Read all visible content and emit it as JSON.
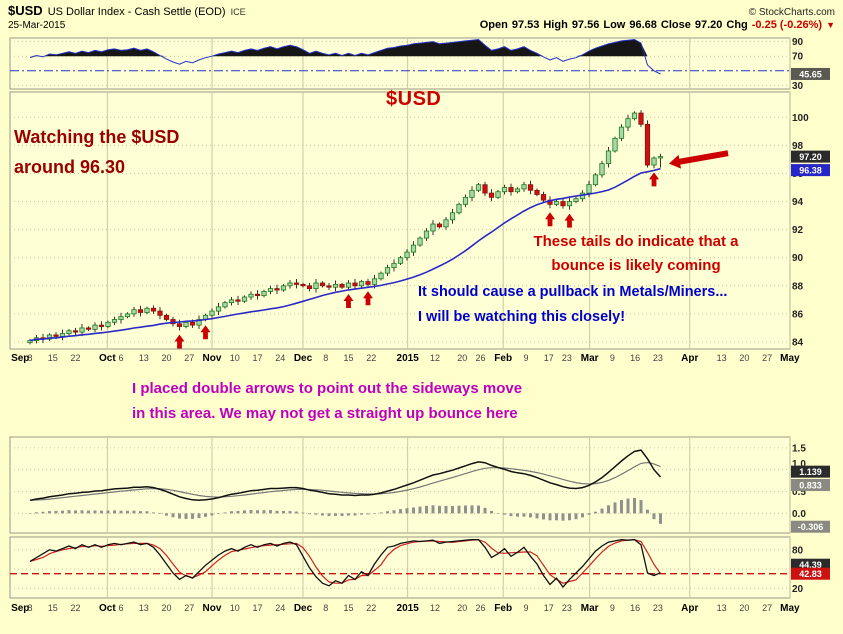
{
  "header": {
    "symbol": "$USD",
    "title": "US Dollar Index - Cash Settle (EOD)",
    "exchange": "ICE",
    "credit": "© StockCharts.com",
    "date": "25-Mar-2015",
    "quote": {
      "open_label": "Open",
      "open": "97.53",
      "high_label": "High",
      "high": "97.56",
      "low_label": "Low",
      "low": "96.68",
      "close_label": "Close",
      "close": "97.20",
      "chg_label": "Chg",
      "chg": "-0.25 (-0.26%)",
      "chg_dir": "▼"
    }
  },
  "annotations": {
    "usd_label": "$USD",
    "watching": "Watching the $USD\naround 96.30",
    "tails": "These tails do indicate that a\nbounce is likely coming",
    "pullback": "It should cause a pullback in Metals/Miners...\nI will be watching this closely!",
    "double_arrows": "I placed double arrows to point out the sideways move\nin this area.  We may not get a straight up bounce here"
  },
  "colors": {
    "background": "#FFFFCC",
    "panel": "#FFFFD6",
    "grid": "#C9C9A0",
    "candle_up": "#1D7A1D",
    "candle_up_fill": "#A8D8A8",
    "candle_down": "#CC1111",
    "candle_down_edge": "#881111",
    "ma": "#2929C8",
    "rsi_line": "#2233CC",
    "annotation_red": "#CC0000",
    "annotation_darkred": "#990000",
    "annotation_blue": "#0000CC",
    "annotation_purple": "#C000C0",
    "badge_black": "#2B2B2B",
    "badge_dark": "#5A5A52",
    "badge_gray": "#8A8A82",
    "badge_blue": "#2525C8",
    "badge_red": "#CC1111",
    "stoch_d": "#CC2222",
    "macd_line": "#111111",
    "macd_signal": "#777777",
    "histogram": "#909090"
  },
  "month_grid_i": [
    11.9,
    28,
    42,
    58.1,
    72.8,
    86.1,
    101.5,
    116.9
  ],
  "xticks": [
    {
      "t": "Sep",
      "i": -1.5,
      "b": 1
    },
    {
      "t": "8",
      "i": 0
    },
    {
      "t": "15",
      "i": 3.5
    },
    {
      "t": "22",
      "i": 7
    },
    {
      "t": "Oct",
      "i": 11.9,
      "b": 1
    },
    {
      "t": "6",
      "i": 14
    },
    {
      "t": "13",
      "i": 17.5
    },
    {
      "t": "20",
      "i": 21
    },
    {
      "t": "27",
      "i": 24.5
    },
    {
      "t": "Nov",
      "i": 28,
      "b": 1
    },
    {
      "t": "10",
      "i": 31.5
    },
    {
      "t": "17",
      "i": 35
    },
    {
      "t": "24",
      "i": 38.5
    },
    {
      "t": "Dec",
      "i": 42,
      "b": 1
    },
    {
      "t": "8",
      "i": 45.5
    },
    {
      "t": "15",
      "i": 49
    },
    {
      "t": "22",
      "i": 52.5
    },
    {
      "t": "2015",
      "i": 58.1,
      "b": 1
    },
    {
      "t": "12",
      "i": 62.3
    },
    {
      "t": "20",
      "i": 66.5
    },
    {
      "t": "26",
      "i": 69.3
    },
    {
      "t": "Feb",
      "i": 72.8,
      "b": 1
    },
    {
      "t": "9",
      "i": 76.3
    },
    {
      "t": "17",
      "i": 79.8
    },
    {
      "t": "23",
      "i": 82.6
    },
    {
      "t": "Mar",
      "i": 86.1,
      "b": 1
    },
    {
      "t": "9",
      "i": 89.6
    },
    {
      "t": "16",
      "i": 93.1
    },
    {
      "t": "23",
      "i": 96.6
    },
    {
      "t": "Apr",
      "i": 101.5,
      "b": 1
    },
    {
      "t": "13",
      "i": 106.4
    },
    {
      "t": "20",
      "i": 109.9
    },
    {
      "t": "27",
      "i": 113.4
    },
    {
      "t": "May",
      "i": 116.9,
      "b": 1
    }
  ],
  "chart_data": [
    {
      "id": "rsi_panel",
      "type": "line",
      "title": "RSI indicator panel",
      "ylim": [
        25,
        95
      ],
      "overbought_line": 70,
      "mid_line": 50,
      "values": [
        68,
        71,
        69,
        73,
        72,
        74,
        76,
        74,
        77,
        75,
        78,
        76,
        79,
        80,
        78,
        79,
        81,
        78,
        80,
        76,
        71,
        66,
        62,
        59,
        63,
        61,
        65,
        68,
        70,
        73,
        75,
        77,
        75,
        78,
        80,
        78,
        81,
        83,
        80,
        83,
        85,
        83,
        79,
        74,
        77,
        74,
        72,
        74,
        71,
        74,
        71,
        74,
        72,
        75,
        78,
        81,
        82,
        84,
        85,
        87,
        88,
        89,
        90,
        87,
        88,
        89,
        90,
        91,
        92,
        93,
        85,
        78,
        80,
        83,
        78,
        80,
        83,
        78,
        74,
        69,
        65,
        68,
        63,
        66,
        68,
        72,
        77,
        81,
        84,
        87,
        89,
        91,
        92,
        93,
        88,
        58,
        50,
        45.65
      ],
      "yticks": [
        {
          "v": 90,
          "t": "90"
        },
        {
          "v": 70,
          "t": "70"
        },
        {
          "v": 30,
          "t": "30"
        }
      ],
      "badges": [
        {
          "v": 45.65,
          "t": "45.65",
          "c": "dark"
        }
      ]
    },
    {
      "id": "price_panel",
      "type": "candlestick",
      "title": "US Dollar Index daily candlesticks with moving average",
      "ylim": [
        83.5,
        101.8
      ],
      "ma_period": 20,
      "ma_last_value": 96.38,
      "last_close": 97.2,
      "closes": [
        84.1,
        84.3,
        84.2,
        84.5,
        84.4,
        84.6,
        84.8,
        84.7,
        85.0,
        84.9,
        85.2,
        85.1,
        85.4,
        85.6,
        85.8,
        86.0,
        86.3,
        86.1,
        86.4,
        86.2,
        85.9,
        85.6,
        85.3,
        85.1,
        85.4,
        85.2,
        85.6,
        85.9,
        86.2,
        86.5,
        86.8,
        87.0,
        86.9,
        87.2,
        87.4,
        87.3,
        87.6,
        87.8,
        87.7,
        88.0,
        88.2,
        88.1,
        88.0,
        87.8,
        88.2,
        88.0,
        87.9,
        88.1,
        87.9,
        88.2,
        88.0,
        88.3,
        88.1,
        88.5,
        88.9,
        89.3,
        89.6,
        90.0,
        90.4,
        90.9,
        91.4,
        91.9,
        92.4,
        92.2,
        92.7,
        93.2,
        93.8,
        94.3,
        94.8,
        95.2,
        94.6,
        94.3,
        94.7,
        95.0,
        94.7,
        94.9,
        95.2,
        94.8,
        94.5,
        94.1,
        93.8,
        94.0,
        93.7,
        94.0,
        94.2,
        94.6,
        95.2,
        95.9,
        96.7,
        97.6,
        98.5,
        99.3,
        99.9,
        100.3,
        99.5,
        96.6,
        97.1,
        97.2
      ],
      "yticks": [
        {
          "v": 100,
          "t": "100"
        },
        {
          "v": 98,
          "t": "98"
        },
        {
          "v": 96,
          "t": "96"
        },
        {
          "v": 94,
          "t": "94"
        },
        {
          "v": 92,
          "t": "92"
        },
        {
          "v": 90,
          "t": "90"
        },
        {
          "v": 88,
          "t": "88"
        },
        {
          "v": 86,
          "t": "86"
        },
        {
          "v": 84,
          "t": "84"
        }
      ],
      "badges": [
        {
          "v": 97.2,
          "t": "97.20",
          "c": "black"
        },
        {
          "v": 96.38,
          "t": "96.38",
          "c": "blue",
          "dy": 2
        }
      ],
      "up_arrows_at": [
        23,
        27,
        49,
        52,
        80,
        83,
        96
      ],
      "left_arrow": {
        "i": 98.3,
        "v": 96.7
      }
    },
    {
      "id": "macd_panel",
      "type": "macd",
      "title": "MACD with signal line and histogram",
      "ylim": [
        -0.45,
        1.75
      ],
      "signal_period": 9,
      "macd_last_value": 0.833,
      "signal_last_value": 1.139,
      "histogram_last_value": -0.306,
      "macd": [
        0.3,
        0.33,
        0.35,
        0.38,
        0.4,
        0.42,
        0.45,
        0.46,
        0.48,
        0.49,
        0.51,
        0.52,
        0.54,
        0.56,
        0.57,
        0.58,
        0.6,
        0.6,
        0.61,
        0.59,
        0.55,
        0.5,
        0.44,
        0.38,
        0.34,
        0.31,
        0.3,
        0.31,
        0.33,
        0.36,
        0.4,
        0.44,
        0.46,
        0.49,
        0.52,
        0.53,
        0.55,
        0.57,
        0.57,
        0.58,
        0.59,
        0.59,
        0.57,
        0.53,
        0.51,
        0.48,
        0.45,
        0.44,
        0.42,
        0.42,
        0.41,
        0.42,
        0.42,
        0.44,
        0.47,
        0.51,
        0.55,
        0.6,
        0.65,
        0.7,
        0.76,
        0.82,
        0.88,
        0.91,
        0.95,
        0.99,
        1.04,
        1.09,
        1.14,
        1.18,
        1.16,
        1.1,
        1.05,
        1.01,
        0.96,
        0.93,
        0.91,
        0.87,
        0.82,
        0.76,
        0.7,
        0.66,
        0.61,
        0.58,
        0.57,
        0.59,
        0.64,
        0.72,
        0.82,
        0.94,
        1.07,
        1.2,
        1.32,
        1.42,
        1.45,
        1.25,
        1.0,
        0.833
      ],
      "yticks": [
        {
          "v": 1.5,
          "t": "1.5"
        },
        {
          "v": 1.0,
          "t": "1.0",
          "dy": -6
        },
        {
          "v": 0.5,
          "t": "0.5"
        },
        {
          "v": 0.0,
          "t": "0.0"
        }
      ],
      "badges": [
        {
          "v": 1.139,
          "t": "1.139",
          "c": "black",
          "dy": 8
        },
        {
          "v": 0.833,
          "t": "0.833",
          "c": "gray",
          "dy": 8
        },
        {
          "v": -0.306,
          "t": "-0.306",
          "c": "gray"
        }
      ]
    },
    {
      "id": "stoch_panel",
      "type": "stoch",
      "title": "Stochastic oscillator %K %D",
      "ylim": [
        5,
        100
      ],
      "d_period": 3,
      "support_line": 42.83,
      "k_last_value": 44.39,
      "d_last_value": 42.83,
      "k": [
        62,
        68,
        74,
        80,
        78,
        82,
        86,
        82,
        88,
        84,
        88,
        84,
        88,
        90,
        88,
        90,
        92,
        88,
        90,
        84,
        72,
        58,
        44,
        34,
        40,
        36,
        46,
        56,
        64,
        72,
        78,
        82,
        78,
        84,
        88,
        84,
        88,
        90,
        86,
        90,
        92,
        88,
        70,
        52,
        38,
        28,
        24,
        32,
        28,
        40,
        34,
        46,
        40,
        58,
        72,
        84,
        86,
        90,
        92,
        94,
        93,
        94,
        95,
        90,
        92,
        93,
        94,
        95,
        96,
        96,
        84,
        68,
        74,
        82,
        70,
        76,
        84,
        70,
        58,
        40,
        26,
        36,
        22,
        34,
        44,
        54,
        66,
        78,
        86,
        92,
        94,
        96,
        95,
        96,
        88,
        44,
        40,
        44.39
      ],
      "yticks": [
        {
          "v": 80,
          "t": "80"
        },
        {
          "v": 50,
          "t": "50"
        },
        {
          "v": 20,
          "t": "20"
        }
      ],
      "badges": [
        {
          "v": 44.39,
          "t": "44.39",
          "c": "black",
          "dy": -8
        },
        {
          "v": 42.83,
          "t": "42.83",
          "c": "red"
        }
      ]
    }
  ]
}
